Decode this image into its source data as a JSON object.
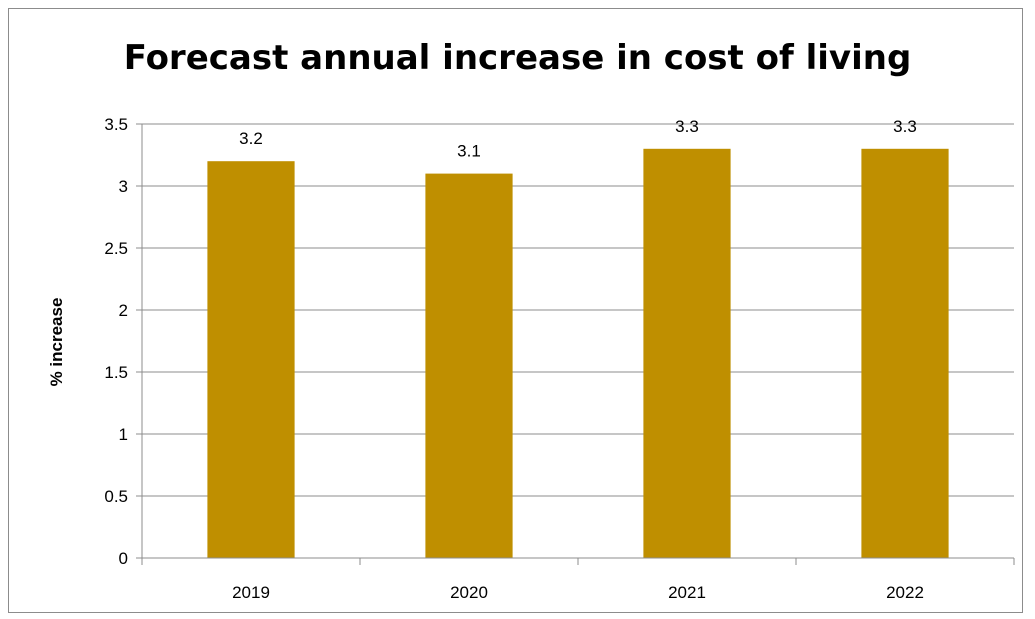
{
  "chart_data": {
    "type": "bar",
    "title": "Forecast annual increase in cost of living",
    "xlabel": "",
    "ylabel": "% increase",
    "categories": [
      "2019",
      "2020",
      "2021",
      "2022"
    ],
    "values": [
      3.2,
      3.1,
      3.3,
      3.3
    ],
    "data_labels": [
      "3.2",
      "3.1",
      "3.3",
      "3.3"
    ],
    "ylim": [
      0,
      3.5
    ],
    "yticks": [
      "0",
      "0.5",
      "1",
      "1.5",
      "2",
      "2.5",
      "3",
      "3.5"
    ],
    "grid": true,
    "legend": "none",
    "bar_color": "#bf8f00"
  }
}
